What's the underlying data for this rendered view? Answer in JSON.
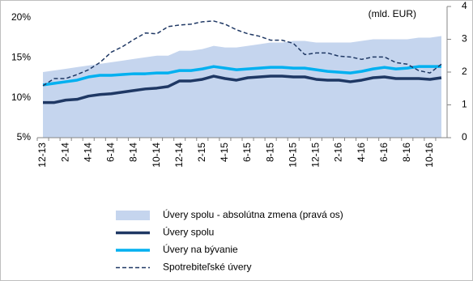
{
  "chart_data": {
    "type": "line",
    "annotations": [
      "(mld. EUR)"
    ],
    "categories": [
      "12-13",
      null,
      "2-14",
      null,
      "4-14",
      null,
      "6-14",
      null,
      "8-14",
      null,
      "10-14",
      null,
      "12-14",
      null,
      "2-15",
      null,
      "4-15",
      null,
      "6-15",
      null,
      "8-15",
      null,
      "10-15",
      null,
      "12-15",
      null,
      "2-16",
      null,
      "4-16",
      null,
      "6-16",
      null,
      "8-16",
      null,
      "10-16",
      null
    ],
    "series": [
      {
        "name": "Úvery spolu - absolútna zmena (pravá os)",
        "kind": "area",
        "axis": "y2",
        "color": "#c5d5ee",
        "values": [
          2.0,
          2.05,
          2.1,
          2.15,
          2.2,
          2.25,
          2.3,
          2.35,
          2.4,
          2.45,
          2.5,
          2.5,
          2.65,
          2.65,
          2.7,
          2.8,
          2.75,
          2.75,
          2.8,
          2.85,
          2.9,
          2.9,
          2.95,
          2.95,
          2.9,
          2.9,
          2.9,
          2.9,
          2.95,
          3.0,
          3.0,
          3.0,
          3.0,
          3.05,
          3.05,
          3.1
        ]
      },
      {
        "name": "Úvery spolu",
        "kind": "line",
        "color": "#1f3864",
        "values": [
          9.4,
          9.4,
          9.7,
          9.8,
          10.2,
          10.4,
          10.5,
          10.7,
          10.9,
          11.1,
          11.2,
          11.4,
          12.1,
          12.1,
          12.3,
          12.7,
          12.4,
          12.2,
          12.5,
          12.6,
          12.7,
          12.7,
          12.6,
          12.6,
          12.3,
          12.2,
          12.2,
          12.0,
          12.2,
          12.5,
          12.6,
          12.4,
          12.4,
          12.4,
          12.3,
          12.5
        ]
      },
      {
        "name": "Úvery na bývanie",
        "kind": "line",
        "color": "#00b0f0",
        "values": [
          11.6,
          11.8,
          12.0,
          12.2,
          12.6,
          12.8,
          12.8,
          12.9,
          13.0,
          13.0,
          13.1,
          13.1,
          13.4,
          13.4,
          13.6,
          13.9,
          13.7,
          13.5,
          13.6,
          13.7,
          13.8,
          13.8,
          13.7,
          13.7,
          13.5,
          13.3,
          13.2,
          13.1,
          13.3,
          13.6,
          13.8,
          13.6,
          13.7,
          13.9,
          13.9,
          13.9
        ]
      },
      {
        "name": "Spotrebiteľské úvery",
        "kind": "dashed",
        "color": "#1f3864",
        "values": [
          11.5,
          12.4,
          12.4,
          12.9,
          13.5,
          14.4,
          15.7,
          16.4,
          17.3,
          18.1,
          18.0,
          18.9,
          19.1,
          19.2,
          19.5,
          19.6,
          19.2,
          18.5,
          18.0,
          17.7,
          17.2,
          17.2,
          16.8,
          15.4,
          15.6,
          15.6,
          15.2,
          15.1,
          14.8,
          15.1,
          15.1,
          14.4,
          14.2,
          13.4,
          13.1,
          14.2
        ]
      }
    ],
    "ylim": [
      5,
      20
    ],
    "yticks": [
      {
        "value": 5,
        "label": "5%"
      },
      {
        "value": 10,
        "label": "10%"
      },
      {
        "value": 15,
        "label": "15%"
      },
      {
        "value": 20,
        "label": "20%"
      }
    ],
    "y2lim": [
      0,
      4
    ],
    "y2ticks": [
      0,
      1,
      2,
      3,
      4
    ]
  }
}
